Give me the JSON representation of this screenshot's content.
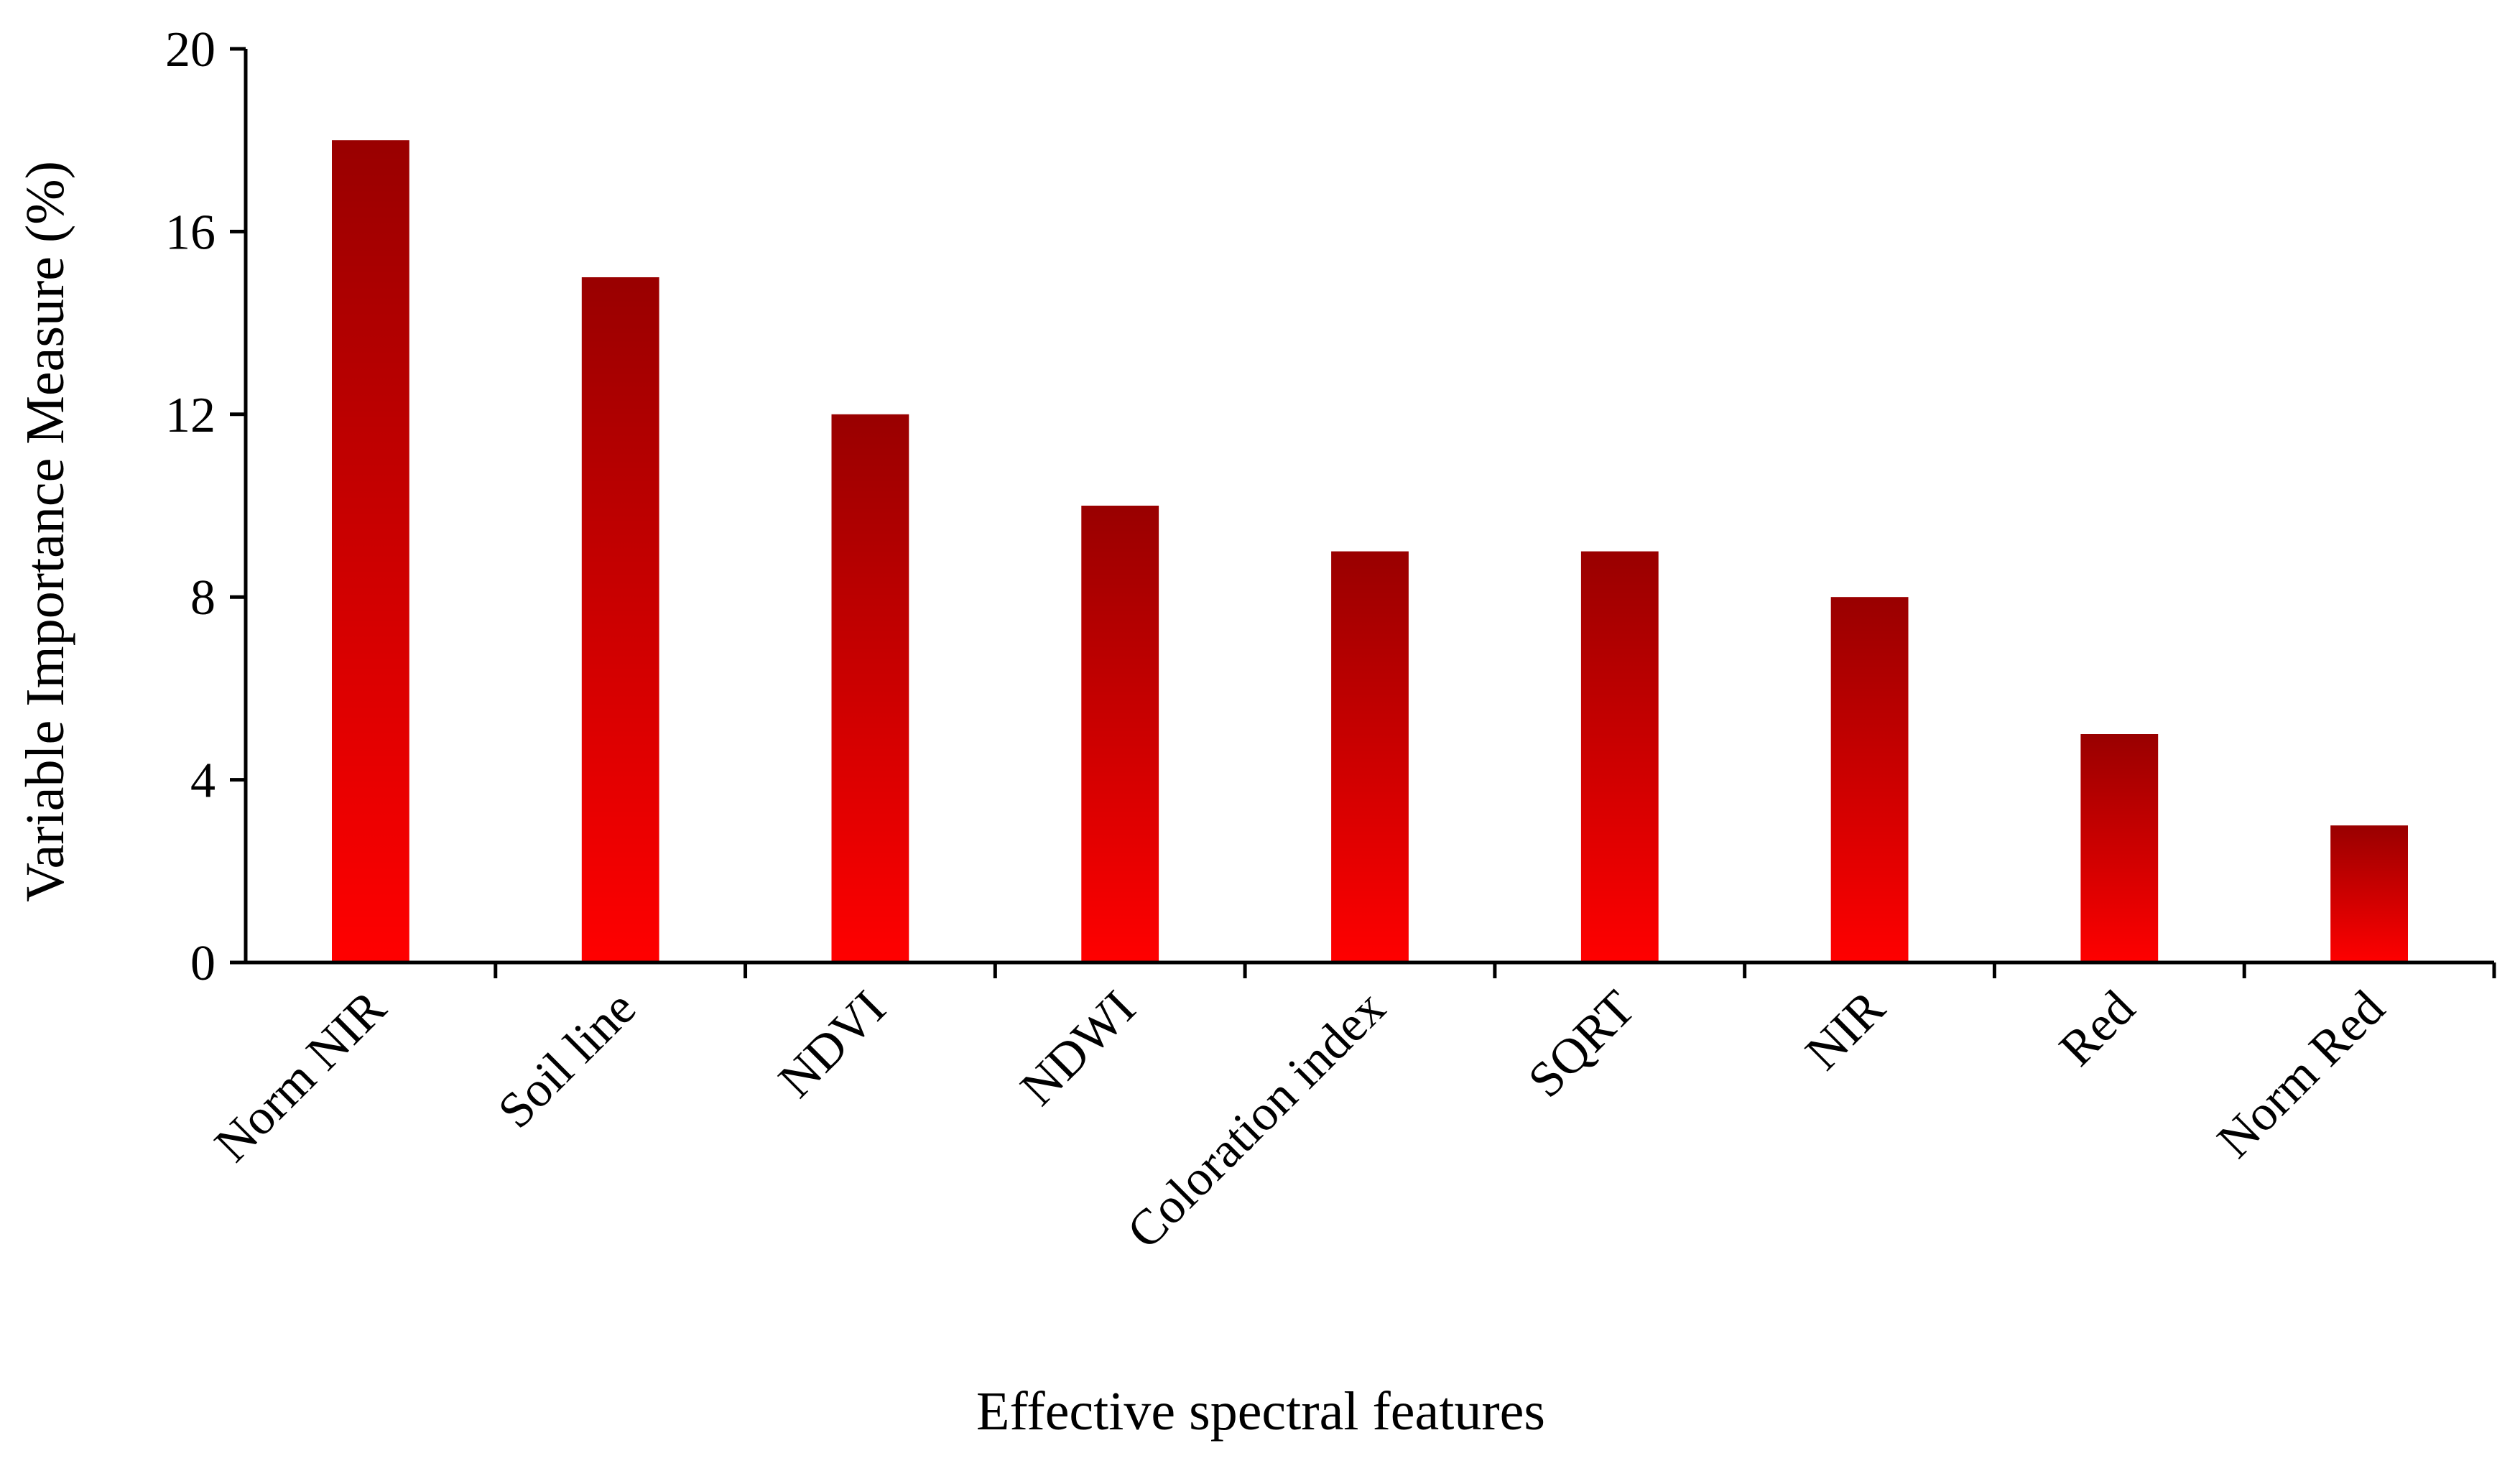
{
  "chart_data": {
    "type": "bar",
    "title": "",
    "xlabel": "Effective spectral features",
    "ylabel": "Variable Importance Measure (%)",
    "categories": [
      "Norm NIR",
      "Soil line",
      "NDVI",
      "NDWI",
      "Coloration index",
      "SQRT",
      "NIR",
      "Red",
      "Norm Red"
    ],
    "values": [
      18,
      15,
      12,
      10,
      9,
      9,
      8,
      5,
      3
    ],
    "ylim": [
      0,
      20
    ],
    "yticks": [
      0,
      4,
      8,
      12,
      16,
      20
    ],
    "grid": false,
    "legend": "none",
    "colors": {
      "bar_top": "#990000",
      "bar_bottom": "#ff0000",
      "axis": "#000000"
    }
  }
}
